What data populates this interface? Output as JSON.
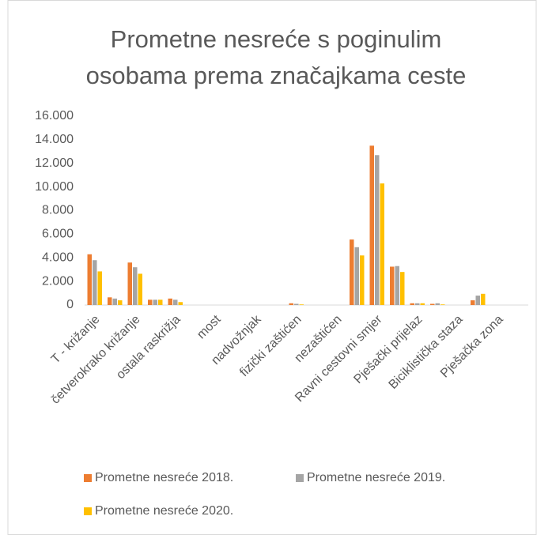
{
  "chart_data": {
    "type": "bar",
    "title": [
      "Prometne nesreće s poginulim",
      "osobama prema značajkama ceste"
    ],
    "categories": [
      "T - križanje",
      null,
      "četverokrako križanje",
      null,
      "ostala raskrižja",
      null,
      "most",
      null,
      "nadvožnjak",
      null,
      "fizički zaštićen",
      null,
      "nezaštićen",
      null,
      "Ravni cestovni smjer",
      null,
      "Pješački prijelaz",
      null,
      "Biciklistička staza",
      null,
      "Pješačka zona",
      null
    ],
    "series": [
      {
        "name": "Prometne nesreće  2018.",
        "color": "#ed7d31",
        "values": [
          4300,
          650,
          3600,
          450,
          550,
          0,
          0,
          0,
          0,
          0,
          150,
          0,
          0,
          5550,
          13500,
          3250,
          150,
          100,
          0,
          400,
          0,
          0
        ]
      },
      {
        "name": "Prometne nesreće  2019.",
        "color": "#a5a5a5",
        "values": [
          3800,
          550,
          3200,
          450,
          450,
          0,
          0,
          0,
          0,
          0,
          100,
          0,
          0,
          4900,
          12700,
          3300,
          150,
          150,
          0,
          800,
          0,
          0
        ]
      },
      {
        "name": "Prometne nesreće  2020.",
        "color": "#ffc000",
        "values": [
          2850,
          400,
          2650,
          450,
          250,
          0,
          0,
          0,
          0,
          0,
          50,
          0,
          0,
          4200,
          10300,
          2800,
          150,
          50,
          0,
          950,
          0,
          0
        ]
      }
    ],
    "ylim": [
      0,
      16000
    ],
    "yticks": [
      0,
      {
        "value": 2000,
        "label": "2.000"
      },
      {
        "value": 4000,
        "label": "4.000"
      },
      {
        "value": 6000,
        "label": "6.000"
      },
      {
        "value": 8000,
        "label": "8.000"
      },
      {
        "value": 10000,
        "label": "10.000"
      },
      {
        "value": 12000,
        "label": "12.000"
      },
      {
        "value": 14000,
        "label": "14.000"
      },
      {
        "value": 16000,
        "label": "16.000"
      }
    ],
    "grid": false,
    "legend": "bottom"
  }
}
